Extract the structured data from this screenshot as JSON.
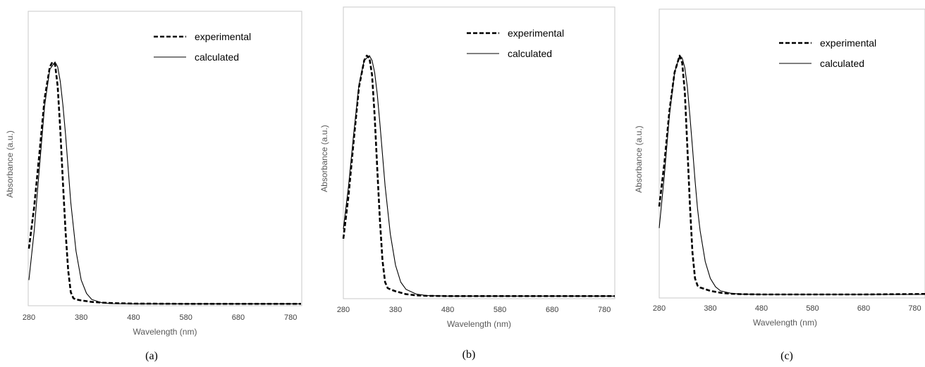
{
  "colors": {
    "frame": "#c8c8c8",
    "axis_title": "#595959",
    "tick": "#404040",
    "series": "#000000"
  },
  "chart_data": [
    {
      "type": "line",
      "panel_label": "(a)",
      "xlabel": "Wavelength (nm)",
      "ylabel": "Absorbance (a.u.)",
      "xlim": [
        280,
        800
      ],
      "ylim": [
        0,
        1.0
      ],
      "xticks": [
        "280",
        "380",
        "480",
        "580",
        "680",
        "780"
      ],
      "legend_position": "top-right",
      "grid": false,
      "series": [
        {
          "name": "experimental",
          "style": "dashed",
          "x": [
            280,
            290,
            300,
            310,
            320,
            325,
            330,
            335,
            340,
            345,
            350,
            355,
            360,
            365,
            370,
            375,
            380,
            390,
            400,
            420,
            440,
            480,
            580,
            680,
            800
          ],
          "y": [
            0.23,
            0.4,
            0.62,
            0.85,
            0.98,
            1.0,
            0.99,
            0.9,
            0.72,
            0.5,
            0.3,
            0.14,
            0.05,
            0.025,
            0.02,
            0.018,
            0.016,
            0.013,
            0.01,
            0.007,
            0.005,
            0.003,
            0.002,
            0.002,
            0.002
          ]
        },
        {
          "name": "calculated",
          "style": "solid",
          "x": [
            280,
            290,
            300,
            310,
            320,
            330,
            335,
            340,
            345,
            350,
            355,
            360,
            370,
            380,
            390,
            400,
            420,
            440,
            480,
            580,
            680,
            800
          ],
          "y": [
            0.1,
            0.3,
            0.56,
            0.82,
            0.97,
            1.0,
            0.98,
            0.92,
            0.82,
            0.7,
            0.56,
            0.42,
            0.22,
            0.1,
            0.045,
            0.02,
            0.006,
            0.003,
            0.002,
            0.002,
            0.002,
            0.002
          ]
        }
      ]
    },
    {
      "type": "line",
      "panel_label": "(b)",
      "xlabel": "Wavelength (nm)",
      "ylabel": "Absorbance (a.u.)",
      "xlim": [
        280,
        800
      ],
      "ylim": [
        0,
        1.0
      ],
      "xticks": [
        "280",
        "380",
        "480",
        "580",
        "680",
        "780"
      ],
      "legend_position": "top-right",
      "grid": false,
      "series": [
        {
          "name": "experimental",
          "style": "dashed",
          "x": [
            280,
            290,
            300,
            310,
            320,
            325,
            330,
            335,
            340,
            345,
            350,
            355,
            360,
            365,
            370,
            380,
            390,
            400,
            420,
            440,
            480,
            580,
            680,
            800
          ],
          "y": [
            0.24,
            0.42,
            0.65,
            0.87,
            0.98,
            1.0,
            0.99,
            0.92,
            0.75,
            0.53,
            0.32,
            0.15,
            0.06,
            0.035,
            0.03,
            0.022,
            0.016,
            0.01,
            0.005,
            0.003,
            0.002,
            0.002,
            0.002,
            0.002
          ]
        },
        {
          "name": "calculated",
          "style": "solid",
          "x": [
            280,
            290,
            300,
            310,
            320,
            330,
            335,
            340,
            345,
            350,
            355,
            360,
            370,
            380,
            390,
            400,
            420,
            440,
            480,
            580,
            680,
            800
          ],
          "y": [
            0.28,
            0.46,
            0.68,
            0.88,
            0.98,
            1.0,
            0.98,
            0.93,
            0.84,
            0.72,
            0.59,
            0.46,
            0.26,
            0.13,
            0.06,
            0.03,
            0.01,
            0.004,
            0.002,
            0.002,
            0.002,
            0.002
          ]
        }
      ]
    },
    {
      "type": "line",
      "panel_label": "(c)",
      "xlabel": "Wavelength (nm)",
      "ylabel": "Absorbance (a.u.)",
      "xlim": [
        280,
        800
      ],
      "ylim": [
        0,
        1.0
      ],
      "xticks": [
        "280",
        "380",
        "480",
        "580",
        "680",
        "780"
      ],
      "legend_position": "top-right",
      "grid": false,
      "series": [
        {
          "name": "experimental",
          "style": "dashed",
          "x": [
            280,
            290,
            300,
            310,
            320,
            325,
            330,
            335,
            340,
            345,
            350,
            355,
            360,
            370,
            380,
            400,
            420,
            440,
            480,
            580,
            680,
            800
          ],
          "y": [
            0.37,
            0.55,
            0.77,
            0.93,
            1.0,
            0.97,
            0.85,
            0.62,
            0.38,
            0.18,
            0.07,
            0.04,
            0.032,
            0.025,
            0.018,
            0.01,
            0.006,
            0.004,
            0.003,
            0.003,
            0.003,
            0.005
          ]
        },
        {
          "name": "calculated",
          "style": "solid",
          "x": [
            280,
            290,
            300,
            310,
            320,
            325,
            330,
            335,
            340,
            345,
            350,
            355,
            360,
            370,
            380,
            390,
            400,
            420,
            440,
            480,
            580,
            680,
            800
          ],
          "y": [
            0.28,
            0.5,
            0.75,
            0.93,
            1.0,
            0.99,
            0.95,
            0.87,
            0.75,
            0.62,
            0.48,
            0.36,
            0.27,
            0.14,
            0.07,
            0.035,
            0.018,
            0.008,
            0.004,
            0.003,
            0.003,
            0.003,
            0.003
          ]
        }
      ]
    }
  ]
}
